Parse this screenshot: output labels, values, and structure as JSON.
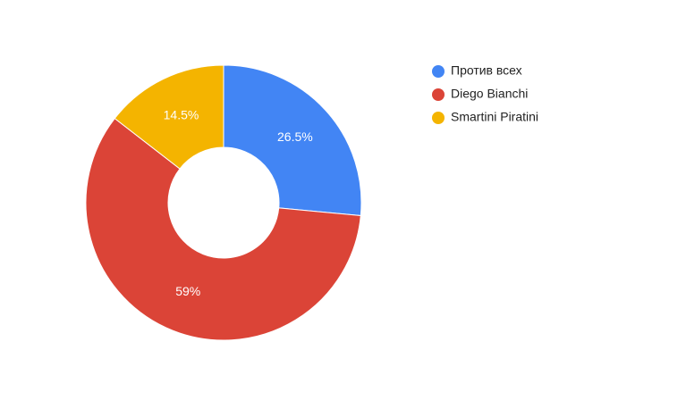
{
  "chart_data": {
    "type": "pie",
    "series": [
      {
        "name": "Против всех",
        "color": "#4285f4"
      },
      {
        "name": "Diego Bianchi",
        "color": "#db4437"
      },
      {
        "name": "Smartini Piratini",
        "color": "#f4b400"
      }
    ],
    "values": [
      26.5,
      59,
      14.5
    ],
    "value_labels": [
      "26.5%",
      "59%",
      "14.5%"
    ],
    "legend": "right"
  }
}
